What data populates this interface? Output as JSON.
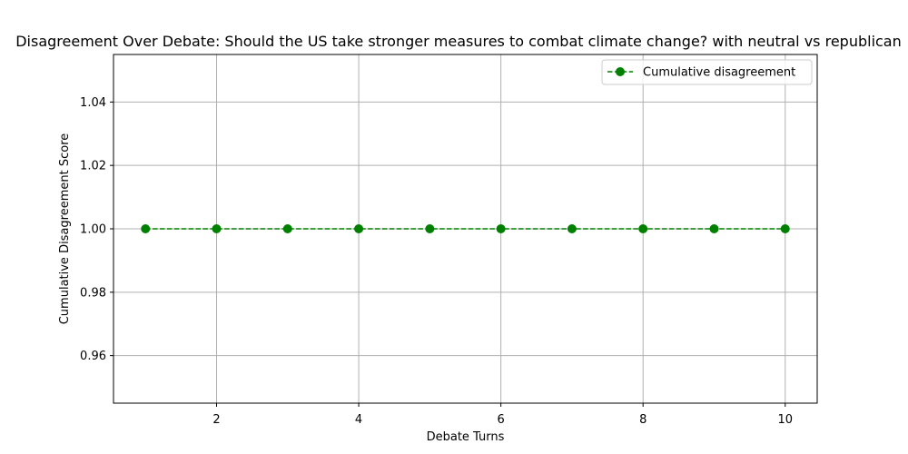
{
  "chart_data": {
    "type": "line",
    "title": "Disagreement Over Debate: Should the US take stronger measures to combat climate change? with neutral vs republican",
    "xlabel": "Debate Turns",
    "ylabel": "Cumulative Disagreement Score",
    "xlim": [
      0.55,
      10.45
    ],
    "ylim": [
      0.945,
      1.055
    ],
    "xticks": [
      2,
      4,
      6,
      8,
      10
    ],
    "yticks": [
      0.96,
      0.98,
      1.0,
      1.02,
      1.04
    ],
    "ytick_labels": [
      "0.96",
      "0.98",
      "1.00",
      "1.02",
      "1.04"
    ],
    "grid": true,
    "legend_position": "top-right",
    "series": [
      {
        "name": "Cumulative disagreement",
        "color": "#008000",
        "line_style": "dashed",
        "marker": "circle",
        "x": [
          1,
          2,
          3,
          4,
          5,
          6,
          7,
          8,
          9,
          10
        ],
        "y": [
          1.0,
          1.0,
          1.0,
          1.0,
          1.0,
          1.0,
          1.0,
          1.0,
          1.0,
          1.0
        ]
      }
    ]
  }
}
